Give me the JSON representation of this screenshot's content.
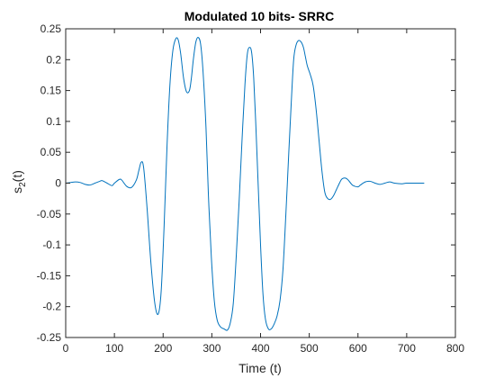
{
  "chart_data": {
    "type": "line",
    "title": "Modulated 10 bits- SRRC",
    "xlabel": "Time (t)",
    "ylabel_main": "s",
    "ylabel_sub": "2",
    "ylabel_tail": "(t)",
    "xlim": [
      0,
      800
    ],
    "ylim": [
      -0.25,
      0.25
    ],
    "xticks": [
      0,
      100,
      200,
      300,
      400,
      500,
      600,
      700,
      800
    ],
    "xtick_labels": [
      "0",
      "100",
      "200",
      "300",
      "400",
      "500",
      "600",
      "700",
      "800"
    ],
    "yticks": [
      -0.25,
      -0.2,
      -0.15,
      -0.1,
      -0.05,
      0,
      0.05,
      0.1,
      0.15,
      0.2,
      0.25
    ],
    "ytick_labels": [
      "-0.25",
      "-0.2",
      "-0.15",
      "-0.1",
      "-0.05",
      "0",
      "0.05",
      "0.1",
      "0.15",
      "0.2",
      "0.25"
    ],
    "grid": false,
    "box": true,
    "line_color": "#0072bd",
    "axes_color": "#262626",
    "series": [
      {
        "x": [
          0,
          10,
          20,
          30,
          40,
          50,
          60,
          70,
          75,
          85,
          95,
          100,
          110,
          115,
          125,
          135,
          145,
          150,
          155,
          160,
          167,
          175,
          183,
          190,
          196,
          202,
          208,
          214,
          220,
          226,
          231,
          236,
          242,
          248,
          254,
          258,
          262,
          267,
          272,
          277,
          282,
          288,
          293,
          299,
          305,
          311,
          318,
          325,
          332,
          338,
          344,
          350,
          356,
          362,
          368,
          373,
          378,
          382,
          386,
          390,
          395,
          400,
          405,
          410,
          416,
          422,
          428,
          434,
          440,
          446,
          452,
          458,
          463,
          468,
          473,
          478,
          483,
          488,
          492,
          496,
          502,
          508,
          514,
          520,
          526,
          532,
          538,
          544,
          550,
          556,
          562,
          566,
          570,
          575,
          580,
          585,
          590,
          600,
          605,
          615,
          625,
          635,
          645,
          655,
          665,
          675,
          690,
          700,
          720,
          736
        ],
        "y": [
          0.0,
          0.001,
          0.002,
          0.001,
          -0.002,
          -0.003,
          0.0,
          0.003,
          0.004,
          0.0,
          -0.004,
          0.0,
          0.006,
          0.005,
          -0.005,
          -0.007,
          0.005,
          0.02,
          0.034,
          0.025,
          -0.04,
          -0.13,
          -0.195,
          -0.212,
          -0.175,
          -0.07,
          0.06,
          0.16,
          0.215,
          0.234,
          0.232,
          0.21,
          0.17,
          0.148,
          0.15,
          0.17,
          0.2,
          0.228,
          0.236,
          0.225,
          0.18,
          0.09,
          -0.02,
          -0.12,
          -0.19,
          -0.222,
          -0.233,
          -0.236,
          -0.238,
          -0.226,
          -0.195,
          -0.12,
          -0.03,
          0.07,
          0.16,
          0.21,
          0.22,
          0.21,
          0.17,
          0.1,
          0.0,
          -0.1,
          -0.18,
          -0.22,
          -0.236,
          -0.236,
          -0.228,
          -0.215,
          -0.19,
          -0.14,
          -0.05,
          0.05,
          0.13,
          0.2,
          0.224,
          0.231,
          0.229,
          0.22,
          0.205,
          0.19,
          0.176,
          0.158,
          0.12,
          0.07,
          0.02,
          -0.015,
          -0.025,
          -0.026,
          -0.02,
          -0.01,
          0.0,
          0.006,
          0.008,
          0.008,
          0.005,
          0.0,
          -0.004,
          -0.006,
          -0.003,
          0.002,
          0.003,
          0.0,
          -0.002,
          0.0,
          0.002,
          0.0,
          -0.001,
          0.0,
          0.0,
          0.0
        ]
      }
    ]
  }
}
